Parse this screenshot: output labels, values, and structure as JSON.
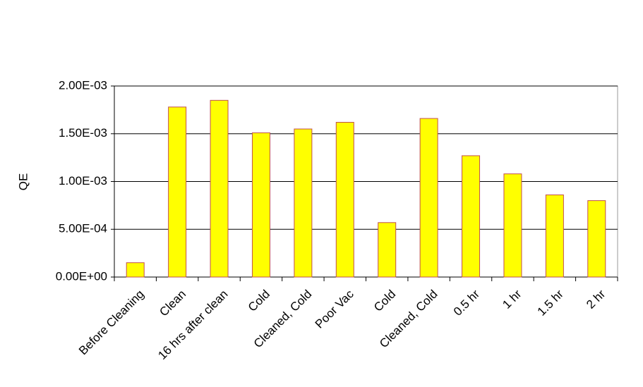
{
  "chart_data": {
    "type": "bar",
    "y_label": "QE",
    "categories": [
      "Before Cleaning",
      "Clean",
      "16 hrs after clean",
      "Cold",
      "Cleaned, Cold",
      "Poor Vac",
      "Cold",
      "Cleaned, Cold",
      "0.5 hr",
      "1 hr",
      "1.5 hr",
      "2 hr"
    ],
    "values": [
      0.00015,
      0.00178,
      0.00185,
      0.00151,
      0.00155,
      0.00162,
      0.00057,
      0.00166,
      0.00127,
      0.00108,
      0.00086,
      0.0008
    ],
    "color": "#ffff00",
    "edge_color": "#c0504d",
    "ylim": [
      0,
      0.002
    ],
    "yticks": [
      {
        "value": 0,
        "label": "0.00E+00"
      },
      {
        "value": 0.0005,
        "label": "5.00E-04"
      },
      {
        "value": 0.001,
        "label": "1.00E-03"
      },
      {
        "value": 0.0015,
        "label": "1.50E-03"
      },
      {
        "value": 0.002,
        "label": "2.00E-03"
      }
    ],
    "grid": true
  }
}
